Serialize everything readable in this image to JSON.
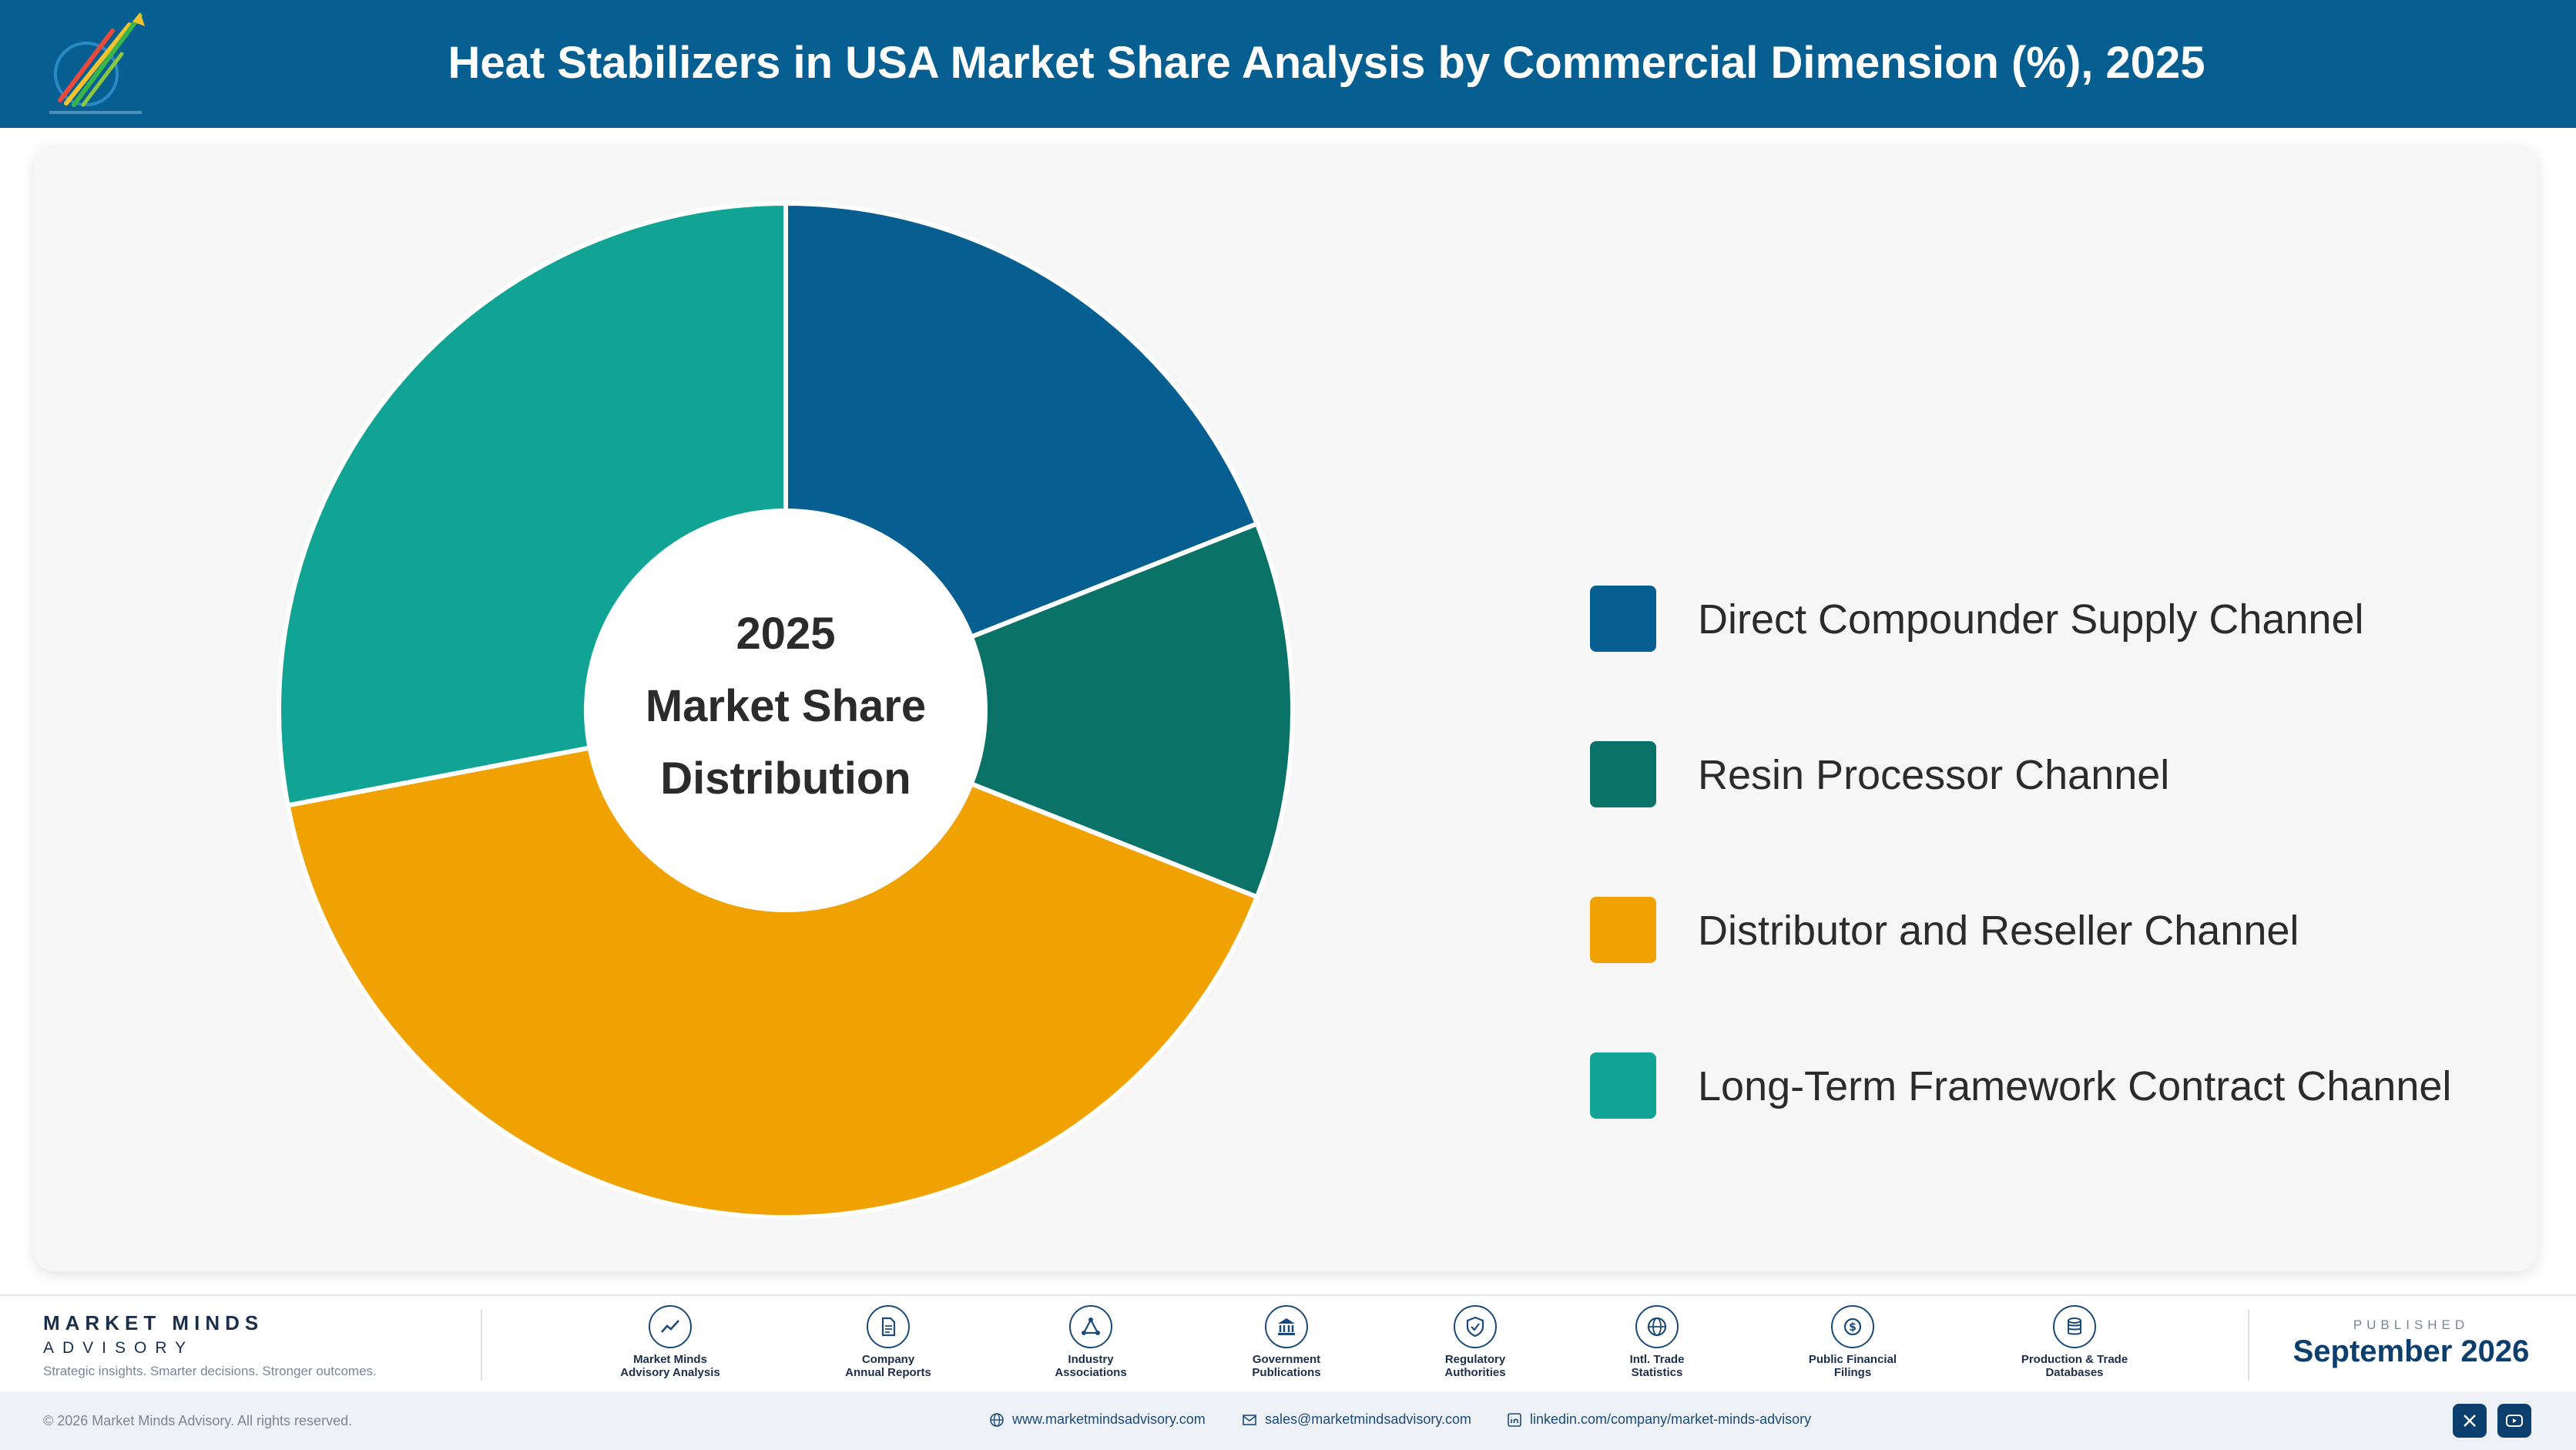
{
  "header": {
    "title": "Heat Stabilizers in USA Market Share Analysis by Commercial Dimension (%), 2025",
    "logo_icon": "market-minds-logo-icon"
  },
  "chart_data": {
    "type": "pie",
    "donut": true,
    "center_text": [
      "2025",
      "Market Share",
      "Distribution"
    ],
    "categories": [
      "Direct Compounder Supply Channel",
      "Resin Processor Channel",
      "Distributor and Reseller Channel",
      "Long-Term Framework Contract Channel"
    ],
    "values": [
      19,
      12,
      41,
      28
    ],
    "colors": [
      "#075f91",
      "#0b7268",
      "#f0a202",
      "#11a394"
    ],
    "legend_position": "right"
  },
  "footer": {
    "brand_name": "MARKET MINDS",
    "brand_sub": "ADVISORY",
    "brand_tagline": "Strategic insights. Smarter decisions. Stronger outcomes.",
    "sources": [
      {
        "line1": "Market Minds",
        "line2": "Advisory Analysis",
        "icon": "trend-line-icon"
      },
      {
        "line1": "Company",
        "line2": "Annual Reports",
        "icon": "document-icon"
      },
      {
        "line1": "Industry",
        "line2": "Associations",
        "icon": "network-icon"
      },
      {
        "line1": "Government",
        "line2": "Publications",
        "icon": "government-building-icon"
      },
      {
        "line1": "Regulatory",
        "line2": "Authorities",
        "icon": "shield-check-icon"
      },
      {
        "line1": "Intl. Trade",
        "line2": "Statistics",
        "icon": "globe-icon"
      },
      {
        "line1": "Public Financial",
        "line2": "Filings",
        "icon": "dollar-coin-icon"
      },
      {
        "line1": "Production & Trade",
        "line2": "Databases",
        "icon": "database-icon"
      }
    ],
    "published_label": "PUBLISHED",
    "published_date": "September 2026",
    "copyright": "© 2026 Market Minds Advisory. All rights reserved.",
    "website": "www.marketmindsadvisory.com",
    "email": "sales@marketmindsadvisory.com",
    "linkedin": "linkedin.com/company/market-minds-advisory",
    "social_icons": [
      "x-icon",
      "youtube-icon"
    ]
  }
}
